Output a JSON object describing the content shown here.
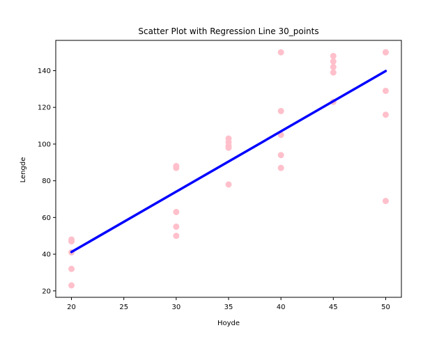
{
  "chart_data": {
    "type": "scatter",
    "title": "Scatter Plot with Regression Line 30_points",
    "xlabel": "Hoyde",
    "ylabel": "Lengde",
    "xlim": [
      18.5,
      51.5
    ],
    "ylim": [
      16.5,
      156.5
    ],
    "xticks": [
      20,
      25,
      30,
      35,
      40,
      45,
      50
    ],
    "yticks": [
      20,
      40,
      60,
      80,
      100,
      120,
      140
    ],
    "grid": false,
    "legend": "none",
    "colors": {
      "points": "#ffc0cb",
      "regression": "#0000ff"
    },
    "series": [
      {
        "kind": "points",
        "x": [
          20,
          20,
          20,
          20,
          20,
          30,
          30,
          30,
          30,
          30,
          35,
          35,
          35,
          35,
          35,
          40,
          40,
          40,
          40,
          40,
          45,
          45,
          45,
          45,
          45,
          50,
          50,
          50,
          50,
          50
        ],
        "y": [
          48,
          47,
          41,
          32,
          23,
          88,
          87,
          63,
          55,
          50,
          103,
          101,
          99,
          98,
          78,
          150,
          118,
          105,
          94,
          87,
          148,
          145,
          142,
          139,
          123,
          150,
          150,
          129,
          116,
          69
        ]
      },
      {
        "kind": "regression-line",
        "x": [
          20,
          50
        ],
        "y": [
          41.2,
          139.8
        ]
      }
    ]
  }
}
